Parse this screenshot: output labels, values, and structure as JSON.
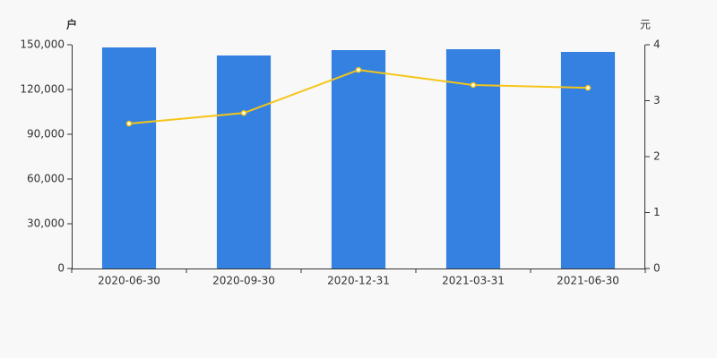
{
  "chart_data": {
    "type": "bar",
    "ylabel": "户",
    "y2label": "元",
    "categories": [
      "2020-06-30",
      "2020-09-30",
      "2020-12-31",
      "2021-03-31",
      "2021-06-30"
    ],
    "series": [
      {
        "type": "bar",
        "color": "#3481e2",
        "values": [
          148200,
          142800,
          146400,
          147000,
          145200
        ]
      },
      {
        "type": "line",
        "axis": "y2",
        "color": "#f5c518",
        "values": [
          2.59,
          2.78,
          3.55,
          3.28,
          3.23
        ]
      }
    ],
    "ylim": [
      0,
      150000
    ],
    "yticks": [
      0,
      {
        "value": 30000,
        "label": "30,000"
      },
      {
        "value": 60000,
        "label": "60,000"
      },
      {
        "value": 90000,
        "label": "90,000"
      },
      {
        "value": 120000,
        "label": "120,000"
      },
      {
        "value": 150000,
        "label": "150,000"
      }
    ],
    "y2lim": [
      0,
      4
    ],
    "y2ticks": [
      0,
      1,
      2,
      3,
      4
    ]
  }
}
